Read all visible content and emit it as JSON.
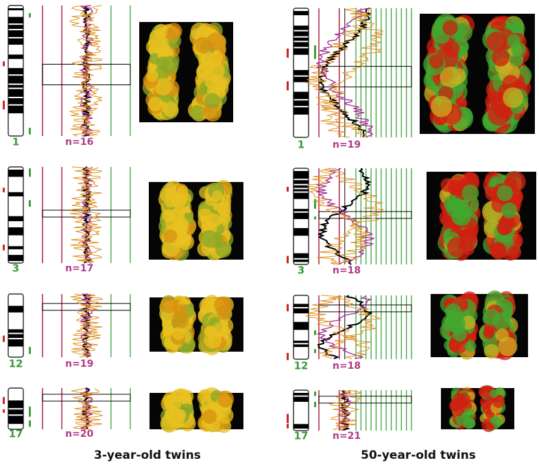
{
  "columns": [
    {
      "caption": "3-year-old twins",
      "panels": [
        {
          "chromosome": "1",
          "n": "n=16"
        },
        {
          "chromosome": "3",
          "n": "n=17"
        },
        {
          "chromosome": "12",
          "n": "n=19"
        },
        {
          "chromosome": "17",
          "n": "n=20"
        }
      ]
    },
    {
      "caption": "50-year-old twins",
      "panels": [
        {
          "chromosome": "1",
          "n": "n=19"
        },
        {
          "chromosome": "3",
          "n": "n=18"
        },
        {
          "chromosome": "12",
          "n": "n=18"
        },
        {
          "chromosome": "17",
          "n": "n=21"
        }
      ]
    }
  ]
}
